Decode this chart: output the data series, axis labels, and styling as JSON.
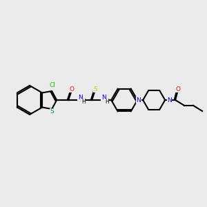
{
  "bg_color": "#ebebeb",
  "bond_color": "#000000",
  "bond_lw": 1.5,
  "atom_colors": {
    "Cl": "#00cc00",
    "S_thio": "#cccc00",
    "S_benzo": "#008080",
    "N": "#0000ff",
    "O": "#ff0000",
    "H": "#000000"
  },
  "figsize": [
    3.0,
    3.0
  ],
  "dpi": 100
}
